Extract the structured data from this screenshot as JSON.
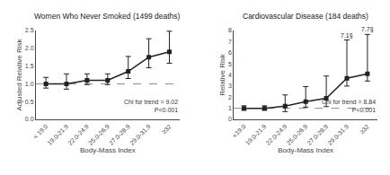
{
  "chart_data": [
    {
      "type": "line",
      "title": "Women Who Never Smoked (1499 deaths)",
      "x_label": "Body-Mass Index",
      "y_label": "Adjusted Relative Risk",
      "categories": [
        "< 19.0",
        "19.0-21.9",
        "22.0-24.9",
        "25.0-26.9",
        "27.0-28.9",
        "29.0-31.9",
        "≥32"
      ],
      "values": [
        1.0,
        1.0,
        1.1,
        1.1,
        1.35,
        1.75,
        1.9
      ],
      "err_low": [
        0.12,
        0.15,
        0.12,
        0.12,
        0.2,
        0.3,
        0.32
      ],
      "err_high": [
        0.18,
        0.28,
        0.18,
        0.18,
        0.42,
        0.52,
        0.58
      ],
      "color": "#222222",
      "marker": "square",
      "ylim": [
        0.0,
        2.5
      ],
      "yticks": [
        {
          "value": 0.0,
          "label": "0.0"
        },
        {
          "value": 0.5,
          "label": "0.5"
        },
        {
          "value": 1.0,
          "label": "1.0"
        },
        {
          "value": 1.5,
          "label": "1.5"
        },
        {
          "value": 2.0,
          "label": "2.0"
        },
        {
          "value": 2.5,
          "label": "2.5"
        }
      ],
      "reference_line": 1.0,
      "annotations": [
        {
          "text": "Chi for trend = 9.02\nP<0.001"
        }
      ],
      "grid": false
    },
    {
      "type": "line",
      "title": "Cardiovascular Disease (184 deaths)",
      "x_label": "Body-Mass Index",
      "y_label": "Relative Risk",
      "categories": [
        "<19.0",
        "19.0-21.9",
        "22.0-24.9",
        "25.0-26.9",
        "27.0-28.9",
        "29.0-31.9",
        "≥32"
      ],
      "values": [
        1.0,
        1.0,
        1.2,
        1.6,
        1.9,
        3.7,
        4.1
      ],
      "err_low": [
        0.18,
        0.18,
        0.5,
        0.5,
        0.75,
        0.7,
        0.65
      ],
      "err_high": [
        0.22,
        0.22,
        1.0,
        1.35,
        2.0,
        3.45,
        3.55
      ],
      "color": "#222222",
      "marker": "square",
      "ylim": [
        0,
        8
      ],
      "yticks": [
        0,
        1,
        2,
        3,
        4,
        5,
        6,
        7,
        8
      ],
      "reference_line": 1.0,
      "annotations": [
        {
          "text": "Chi for trend = 8.84\nP<0.001"
        },
        {
          "x": "29.0-31.9",
          "text": "7.1§"
        },
        {
          "x": "≥32",
          "text": "7.7§"
        }
      ],
      "grid": false
    }
  ]
}
